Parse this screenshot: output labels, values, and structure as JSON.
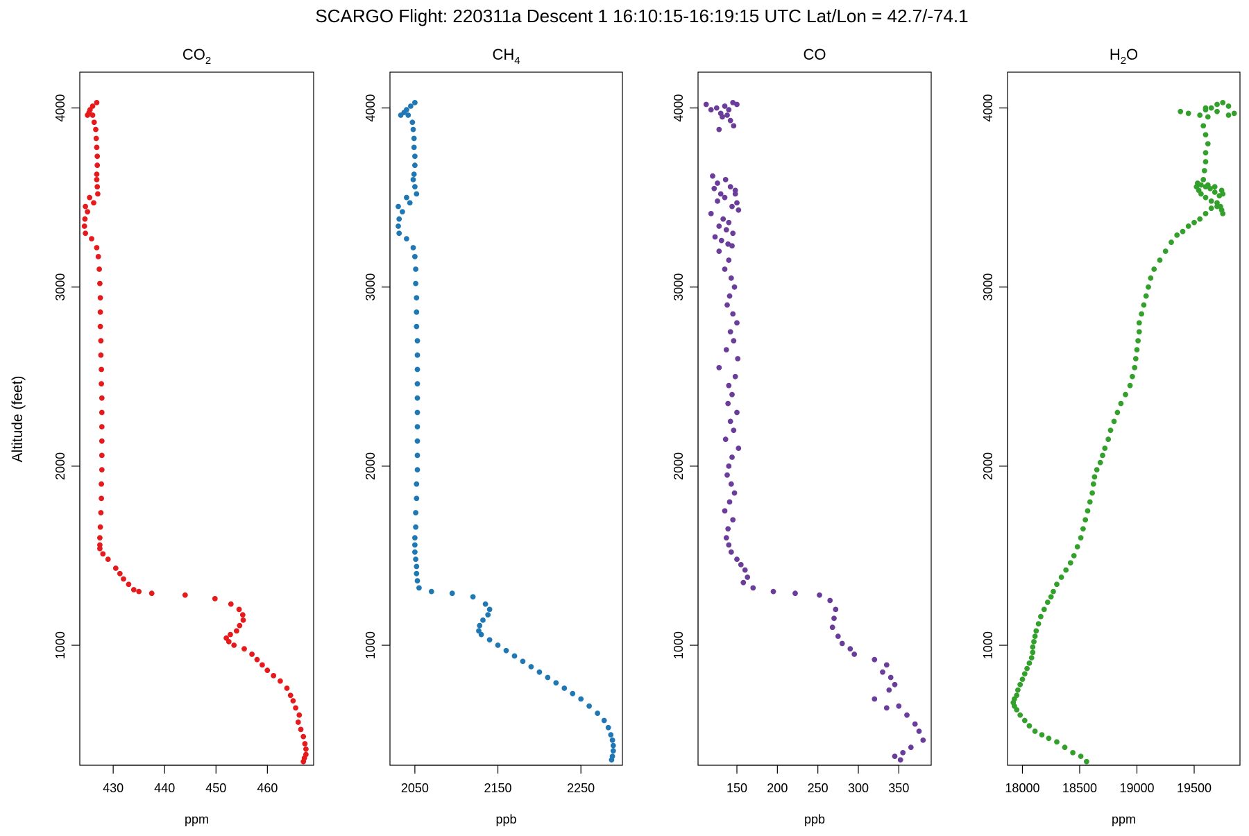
{
  "figure": {
    "title": "SCARGO Flight: 220311a  Descent 1 16:10:15-16:19:15 UTC  Lat/Lon = 42.7/-74.1",
    "shared_ylabel": "Altitude (feet)"
  },
  "chart_data": [
    {
      "type": "scatter",
      "title": "CO",
      "title_sub": "2",
      "title_suffix": "",
      "xlabel": "ppm",
      "ylabel": "Altitude (feet)",
      "xlim": [
        423.5,
        469
      ],
      "ylim": [
        330,
        4200
      ],
      "xticks": [
        430,
        440,
        450,
        460
      ],
      "yticks": [
        1000,
        2000,
        3000,
        4000
      ],
      "color": "#e41a1c",
      "series": [
        {
          "name": "CO2",
          "x": [
            425.0,
            425.5,
            426.0,
            426.8,
            425.3,
            426.0,
            426.3,
            426.6,
            426.7,
            426.8,
            426.9,
            426.9,
            426.8,
            426.8,
            426.9,
            425.4,
            427.0,
            426.2,
            424.6,
            425.0,
            424.5,
            424.4,
            424.6,
            425.8,
            426.8,
            427.1,
            427.3,
            427.4,
            427.5,
            427.5,
            427.5,
            427.6,
            427.6,
            427.7,
            427.7,
            427.8,
            427.8,
            427.8,
            427.8,
            427.8,
            427.8,
            427.7,
            427.7,
            427.6,
            427.5,
            427.4,
            427.4,
            427.4,
            428.0,
            429.0,
            430.5,
            431.3,
            432.0,
            433.0,
            434.0,
            435.0,
            437.5,
            444.0,
            449.8,
            452.9,
            454.5,
            455.2,
            455.3,
            454.6,
            454.0,
            452.8,
            452.0,
            452.5,
            453.5,
            455.5,
            457.0,
            458.0,
            459.0,
            460.0,
            461.2,
            462.5,
            463.8,
            464.5,
            465.0,
            465.5,
            466.2,
            466.0,
            466.5,
            467.0,
            467.3,
            467.5,
            467.5,
            467.2,
            467.0
          ],
          "y": [
            3960,
            3990,
            4010,
            4030,
            3975,
            3960,
            3920,
            3880,
            3830,
            3780,
            3730,
            3680,
            3630,
            3600,
            3560,
            3500,
            3520,
            3470,
            3450,
            3420,
            3380,
            3340,
            3300,
            3270,
            3220,
            3170,
            3100,
            3020,
            2940,
            2860,
            2780,
            2700,
            2620,
            2540,
            2460,
            2380,
            2300,
            2220,
            2140,
            2060,
            1980,
            1900,
            1820,
            1740,
            1660,
            1600,
            1560,
            1540,
            1510,
            1480,
            1430,
            1400,
            1370,
            1340,
            1310,
            1300,
            1290,
            1280,
            1260,
            1230,
            1200,
            1170,
            1140,
            1110,
            1080,
            1060,
            1040,
            1020,
            1000,
            980,
            950,
            920,
            890,
            860,
            830,
            800,
            760,
            720,
            690,
            650,
            610,
            570,
            530,
            490,
            450,
            420,
            390,
            370,
            350
          ]
        }
      ]
    },
    {
      "type": "scatter",
      "title": "CH",
      "title_sub": "4",
      "title_suffix": "",
      "xlabel": "ppb",
      "ylabel": "Altitude (feet)",
      "xlim": [
        2020,
        2300
      ],
      "ylim": [
        330,
        4200
      ],
      "xticks": [
        2050,
        2150,
        2250
      ],
      "yticks": [
        1000,
        2000,
        3000,
        4000
      ],
      "color": "#1f78b4",
      "series": [
        {
          "name": "CH4",
          "x": [
            2033,
            2040,
            2045,
            2050,
            2037,
            2042,
            2047,
            2048,
            2049,
            2049,
            2050,
            2050,
            2049,
            2048,
            2050,
            2040,
            2052,
            2044,
            2030,
            2035,
            2031,
            2030,
            2031,
            2040,
            2048,
            2050,
            2051,
            2051,
            2052,
            2052,
            2052,
            2053,
            2053,
            2053,
            2053,
            2053,
            2053,
            2053,
            2053,
            2053,
            2053,
            2052,
            2052,
            2051,
            2051,
            2050,
            2050,
            2050,
            2051,
            2052,
            2052,
            2053,
            2055,
            2070,
            2095,
            2120,
            2135,
            2140,
            2138,
            2132,
            2128,
            2127,
            2130,
            2140,
            2150,
            2160,
            2170,
            2180,
            2190,
            2200,
            2210,
            2220,
            2230,
            2240,
            2250,
            2260,
            2270,
            2278,
            2283,
            2286,
            2288,
            2289,
            2289,
            2288,
            2287
          ],
          "y": [
            3960,
            3990,
            4010,
            4030,
            3975,
            3960,
            3920,
            3880,
            3830,
            3780,
            3730,
            3680,
            3630,
            3600,
            3560,
            3500,
            3520,
            3470,
            3450,
            3420,
            3380,
            3340,
            3300,
            3270,
            3220,
            3170,
            3100,
            3020,
            2940,
            2860,
            2780,
            2700,
            2620,
            2540,
            2460,
            2380,
            2300,
            2220,
            2140,
            2060,
            1980,
            1900,
            1820,
            1740,
            1660,
            1600,
            1560,
            1520,
            1480,
            1440,
            1400,
            1360,
            1320,
            1300,
            1290,
            1270,
            1230,
            1200,
            1170,
            1140,
            1110,
            1080,
            1060,
            1030,
            1000,
            970,
            940,
            910,
            880,
            850,
            820,
            790,
            760,
            730,
            700,
            660,
            620,
            580,
            540,
            500,
            470,
            440,
            410,
            380,
            360
          ]
        }
      ]
    },
    {
      "type": "scatter",
      "title": "CO",
      "title_sub": "",
      "title_suffix": "",
      "xlabel": "ppb",
      "ylabel": "Altitude (feet)",
      "xlim": [
        102,
        390
      ],
      "ylim": [
        330,
        4200
      ],
      "xticks": [
        150,
        200,
        250,
        300,
        350
      ],
      "yticks": [
        1000,
        2000,
        3000,
        4000
      ],
      "color": "#6a3d9a",
      "series": [
        {
          "name": "CO",
          "x": [
            112,
            118,
            125,
            130,
            135,
            140,
            145,
            150,
            132,
            138,
            142,
            128,
            146,
            122,
            148,
            135,
            126,
            150,
            144,
            152,
            118,
            133,
            140,
            128,
            137,
            145,
            123,
            131,
            139,
            120,
            126,
            142,
            148,
            136,
            130,
            144,
            128,
            140,
            135,
            143,
            147,
            141,
            138,
            145,
            150,
            142,
            146,
            137,
            151,
            128,
            148,
            140,
            144,
            139,
            150,
            142,
            146,
            136,
            152,
            144,
            140,
            138,
            143,
            147,
            141,
            135,
            145,
            139,
            137,
            140,
            143,
            150,
            155,
            160,
            163,
            158,
            170,
            195,
            222,
            252,
            265,
            272,
            270,
            268,
            275,
            280,
            290,
            295,
            320,
            335,
            330,
            340,
            345,
            338,
            320,
            350,
            360,
            370,
            375,
            380,
            365,
            355,
            345,
            352,
            335
          ],
          "y": [
            4020,
            3990,
            4000,
            3970,
            4010,
            3990,
            4030,
            4020,
            3950,
            3960,
            3930,
            3880,
            3900,
            3550,
            3520,
            3500,
            3480,
            3470,
            3450,
            3430,
            3410,
            3380,
            3360,
            3340,
            3320,
            3300,
            3280,
            3260,
            3240,
            3620,
            3580,
            3560,
            3540,
            3600,
            3520,
            3230,
            3200,
            3150,
            3100,
            3050,
            3000,
            2950,
            2900,
            2850,
            2800,
            2750,
            2700,
            2650,
            2600,
            2550,
            2500,
            2450,
            2400,
            2350,
            2300,
            2250,
            2200,
            2150,
            2100,
            2050,
            2000,
            1950,
            1900,
            1850,
            1800,
            1750,
            1700,
            1650,
            1600,
            1560,
            1520,
            1480,
            1450,
            1420,
            1380,
            1350,
            1320,
            1300,
            1290,
            1280,
            1250,
            1200,
            1150,
            1100,
            1050,
            1010,
            980,
            950,
            920,
            890,
            850,
            820,
            780,
            750,
            700,
            660,
            610,
            560,
            520,
            470,
            430,
            400,
            380,
            360,
            650
          ]
        }
      ]
    },
    {
      "type": "scatter",
      "title": "H",
      "title_sub": "2",
      "title_suffix": "O",
      "xlabel": "ppm",
      "ylabel": "Altitude (feet)",
      "xlim": [
        17870,
        19900
      ],
      "ylim": [
        330,
        4200
      ],
      "xticks": [
        18000,
        18500,
        19000,
        19500
      ],
      "yticks": [
        1000,
        2000,
        3000,
        4000
      ],
      "color": "#33a02c",
      "series": [
        {
          "name": "H2O",
          "x": [
            19380,
            19450,
            19550,
            19600,
            19650,
            19700,
            19750,
            19800,
            19850,
            19800,
            19700,
            19600,
            19620,
            19580,
            19600,
            19620,
            19600,
            19600,
            19590,
            19580,
            19620,
            19680,
            19740,
            19750,
            19720,
            19680,
            19640,
            19600,
            19560,
            19530,
            19520,
            19540,
            19560,
            19600,
            19650,
            19700,
            19740,
            19750,
            19730,
            19700,
            19650,
            19600,
            19550,
            19500,
            19450,
            19400,
            19350,
            19300,
            19250,
            19200,
            19150,
            19120,
            19100,
            19080,
            19060,
            19040,
            19020,
            19020,
            19010,
            19000,
            18990,
            18980,
            18960,
            18940,
            18900,
            18860,
            18830,
            18800,
            18770,
            18750,
            18720,
            18700,
            18680,
            18650,
            18630,
            18620,
            18610,
            18590,
            18570,
            18550,
            18530,
            18510,
            18480,
            18450,
            18420,
            18380,
            18340,
            18300,
            18270,
            18250,
            18220,
            18190,
            18160,
            18140,
            18120,
            18110,
            18100,
            18090,
            18090,
            18080,
            18060,
            18040,
            18020,
            18000,
            17980,
            17960,
            17950,
            17930,
            17920,
            17930,
            17950,
            17980,
            18020,
            18060,
            18110,
            18170,
            18230,
            18300,
            18370,
            18440,
            18510,
            18560
          ],
          "y": [
            3980,
            3970,
            3960,
            3990,
            4000,
            4020,
            4030,
            4010,
            3970,
            3960,
            3980,
            4000,
            3950,
            3900,
            3850,
            3800,
            3750,
            3700,
            3650,
            3600,
            3570,
            3560,
            3540,
            3520,
            3510,
            3530,
            3550,
            3560,
            3570,
            3580,
            3560,
            3540,
            3520,
            3500,
            3480,
            3450,
            3430,
            3410,
            3450,
            3470,
            3440,
            3410,
            3380,
            3360,
            3340,
            3310,
            3290,
            3250,
            3200,
            3150,
            3100,
            3050,
            3000,
            2950,
            2900,
            2850,
            2800,
            2750,
            2700,
            2650,
            2600,
            2550,
            2500,
            2450,
            2400,
            2350,
            2300,
            2250,
            2200,
            2150,
            2100,
            2060,
            2020,
            1980,
            1940,
            1900,
            1850,
            1800,
            1750,
            1700,
            1650,
            1600,
            1550,
            1500,
            1460,
            1420,
            1380,
            1340,
            1300,
            1270,
            1240,
            1200,
            1160,
            1120,
            1080,
            1050,
            1020,
            990,
            960,
            930,
            900,
            870,
            840,
            810,
            780,
            750,
            720,
            700,
            680,
            660,
            640,
            610,
            580,
            550,
            520,
            500,
            480,
            460,
            430,
            400,
            380,
            350
          ]
        }
      ]
    }
  ]
}
